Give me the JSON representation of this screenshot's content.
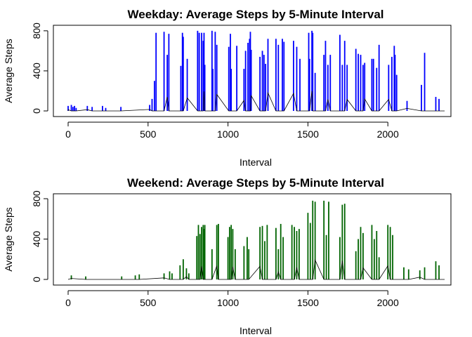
{
  "chart_data": [
    {
      "type": "bar",
      "id": "weekday",
      "title": "Weekday: Average Steps by 5-Minute Interval",
      "xlabel": "Interval",
      "ylabel": "Average Steps",
      "xlim": [
        0,
        2355
      ],
      "ylim": [
        0,
        806
      ],
      "x_ticks": [
        0,
        500,
        1000,
        1500,
        2000
      ],
      "y_ticks": [
        0,
        400,
        800
      ],
      "color": "#0000ff",
      "grid": false,
      "x": [
        0,
        20,
        30,
        40,
        50,
        120,
        150,
        215,
        235,
        330,
        510,
        525,
        540,
        550,
        600,
        620,
        630,
        705,
        715,
        720,
        745,
        810,
        820,
        835,
        845,
        850,
        855,
        900,
        905,
        920,
        930,
        1005,
        1015,
        1020,
        1055,
        1100,
        1110,
        1125,
        1135,
        1140,
        1145,
        1200,
        1215,
        1225,
        1235,
        1250,
        1300,
        1315,
        1340,
        1350,
        1410,
        1430,
        1450,
        1505,
        1510,
        1525,
        1530,
        1545,
        1600,
        1610,
        1625,
        1640,
        1700,
        1715,
        1730,
        1745,
        1800,
        1815,
        1830,
        1845,
        1855,
        1900,
        1910,
        1930,
        1945,
        2005,
        2025,
        2040,
        2045,
        2055,
        2120,
        2210,
        2230,
        2300,
        2320
      ],
      "values": [
        50,
        60,
        40,
        50,
        30,
        50,
        40,
        50,
        30,
        40,
        60,
        120,
        300,
        780,
        790,
        560,
        770,
        450,
        780,
        740,
        520,
        800,
        780,
        780,
        700,
        780,
        460,
        800,
        420,
        790,
        660,
        640,
        770,
        420,
        650,
        420,
        600,
        680,
        720,
        790,
        610,
        540,
        600,
        560,
        470,
        720,
        720,
        660,
        720,
        690,
        700,
        640,
        520,
        780,
        520,
        800,
        780,
        380,
        560,
        700,
        460,
        560,
        760,
        460,
        700,
        460,
        620,
        570,
        560,
        460,
        480,
        520,
        520,
        430,
        660,
        460,
        540,
        650,
        560,
        360,
        100,
        260,
        580,
        140,
        120
      ]
    },
    {
      "type": "bar",
      "id": "weekend",
      "title": "Weekend: Average Steps by 5-Minute Interval",
      "xlabel": "Interval",
      "ylabel": "Average Steps",
      "xlim": [
        0,
        2355
      ],
      "ylim": [
        0,
        800
      ],
      "x_ticks": [
        0,
        500,
        1000,
        1500,
        2000
      ],
      "y_ticks": [
        0,
        400,
        800
      ],
      "color": "#006400",
      "grid": false,
      "x": [
        20,
        110,
        335,
        420,
        445,
        600,
        635,
        650,
        700,
        720,
        740,
        755,
        805,
        815,
        825,
        835,
        845,
        850,
        855,
        900,
        930,
        940,
        1000,
        1010,
        1020,
        1030,
        1045,
        1100,
        1120,
        1130,
        1200,
        1215,
        1230,
        1245,
        1300,
        1315,
        1330,
        1345,
        1400,
        1415,
        1430,
        1445,
        1500,
        1515,
        1530,
        1545,
        1600,
        1615,
        1630,
        1700,
        1715,
        1730,
        1800,
        1815,
        1830,
        1845,
        1900,
        1915,
        1930,
        1945,
        2000,
        2015,
        2030,
        2100,
        2130,
        2200,
        2230,
        2300,
        2320
      ],
      "values": [
        40,
        30,
        30,
        40,
        50,
        60,
        80,
        60,
        140,
        200,
        110,
        60,
        430,
        540,
        450,
        520,
        540,
        500,
        540,
        300,
        540,
        550,
        420,
        520,
        540,
        500,
        300,
        330,
        420,
        300,
        520,
        530,
        380,
        540,
        510,
        300,
        550,
        420,
        540,
        520,
        480,
        500,
        660,
        560,
        780,
        770,
        780,
        440,
        770,
        420,
        740,
        750,
        280,
        400,
        520,
        460,
        540,
        400,
        480,
        220,
        540,
        520,
        440,
        120,
        100,
        90,
        120,
        180,
        140
      ]
    }
  ]
}
